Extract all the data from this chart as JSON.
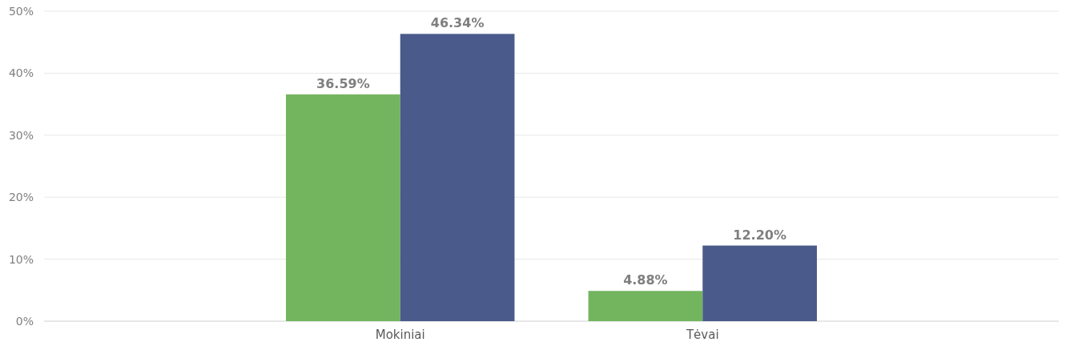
{
  "chart_data": {
    "type": "bar",
    "categories": [
      "Mokiniai",
      "Tėvai"
    ],
    "series": [
      {
        "color": "#73b55f",
        "values": [
          36.59,
          4.88
        ],
        "value_labels": [
          "36.59%",
          "4.88%"
        ]
      },
      {
        "color": "#4a5a8a",
        "values": [
          46.34,
          12.2
        ],
        "value_labels": [
          "46.34%",
          "12.20%"
        ]
      }
    ],
    "ylim": [
      0,
      50
    ],
    "yticks": [
      {
        "value": 0,
        "label": "0%"
      },
      {
        "value": 10,
        "label": "10%"
      },
      {
        "value": 20,
        "label": "20%"
      },
      {
        "value": 30,
        "label": "30%"
      },
      {
        "value": 40,
        "label": "40%"
      },
      {
        "value": 50,
        "label": "50%"
      }
    ],
    "grid": "y"
  }
}
